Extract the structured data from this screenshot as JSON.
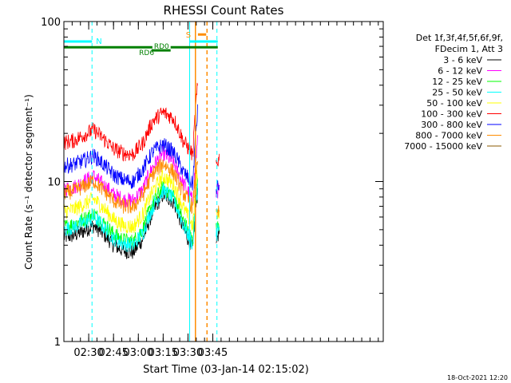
{
  "chart_data": {
    "type": "line",
    "title": "RHESSI Count Rates",
    "xlabel": "Start Time (03-Jan-14 02:15:02)",
    "ylabel": "Count Rate (s⁻¹ detector segment⁻¹)",
    "y_scale": "log",
    "ylim": [
      1,
      100
    ],
    "y_ticks": [
      {
        "value": 1,
        "label": "1"
      },
      {
        "value": 10,
        "label": "10"
      },
      {
        "value": 100,
        "label": "100"
      }
    ],
    "x_range_min": [
      0,
      193
    ],
    "x_ticks": [
      {
        "t": 15,
        "label": "02:30"
      },
      {
        "t": 30,
        "label": "02:45"
      },
      {
        "t": 45,
        "label": "03:00"
      },
      {
        "t": 60,
        "label": "03:15"
      },
      {
        "t": 75,
        "label": "03:30"
      },
      {
        "t": 90,
        "label": "03:45"
      }
    ],
    "legend_header": [
      "Det 1f,3f,4f,5f,6f,9f,",
      "FDecim 1, Att 3"
    ],
    "legend_position": "right",
    "gaps_min": [
      [
        81.5,
        91.5
      ]
    ],
    "series": [
      {
        "name": "3 - 6 keV",
        "color": "#000000",
        "x": [
          0,
          6,
          12,
          18,
          24,
          30,
          36,
          42,
          48,
          54,
          60,
          66,
          72,
          78,
          81
        ],
        "values": [
          4.5,
          4.6,
          4.9,
          5.3,
          4.7,
          4.0,
          3.7,
          3.6,
          4.4,
          6.5,
          8.3,
          7.5,
          5.1,
          3.7,
          9.0
        ],
        "x2": [
          92,
          94
        ],
        "values2": [
          4.5,
          4.8
        ]
      },
      {
        "name": "6 - 12 keV",
        "color": "#ff00ff",
        "x": [
          0,
          6,
          12,
          18,
          24,
          30,
          36,
          42,
          48,
          54,
          60,
          66,
          72,
          78,
          81
        ],
        "values": [
          9.0,
          9.2,
          10.0,
          10.8,
          9.5,
          8.3,
          7.7,
          7.6,
          9.0,
          12.5,
          15.0,
          13.2,
          9.8,
          7.5,
          18.0
        ],
        "x2": [
          92,
          94
        ],
        "values2": [
          8.5,
          9.0
        ]
      },
      {
        "name": "12 - 25 keV",
        "color": "#00ff00",
        "x": [
          0,
          6,
          12,
          18,
          24,
          30,
          36,
          42,
          48,
          54,
          60,
          66,
          72,
          78,
          81
        ],
        "values": [
          5.2,
          5.4,
          5.8,
          6.3,
          5.5,
          4.7,
          4.3,
          4.2,
          5.1,
          7.4,
          9.2,
          8.2,
          5.7,
          4.2,
          10.0
        ],
        "x2": [
          92,
          94
        ],
        "values2": [
          5.0,
          5.3
        ]
      },
      {
        "name": "25 - 50 keV",
        "color": "#00ffff",
        "x": [
          0,
          6,
          12,
          18,
          24,
          30,
          36,
          42,
          48,
          54,
          60,
          66,
          72,
          78,
          81
        ],
        "values": [
          5.0,
          5.2,
          5.5,
          6.0,
          5.2,
          4.4,
          4.1,
          4.0,
          4.8,
          7.0,
          8.8,
          7.8,
          5.4,
          4.0,
          9.5
        ],
        "x2": [
          92,
          94
        ],
        "values2": [
          4.8,
          5.1
        ]
      },
      {
        "name": "50 - 100 keV",
        "color": "#ffff00",
        "x": [
          0,
          6,
          12,
          18,
          24,
          30,
          36,
          42,
          48,
          54,
          60,
          66,
          72,
          78,
          81
        ],
        "values": [
          6.5,
          6.7,
          7.2,
          7.8,
          6.8,
          5.8,
          5.3,
          5.2,
          6.3,
          8.8,
          10.8,
          9.6,
          6.9,
          5.2,
          12.0
        ],
        "x2": [
          92,
          94
        ],
        "values2": [
          6.2,
          6.6
        ]
      },
      {
        "name": "100 - 300 keV",
        "color": "#ff0000",
        "x": [
          0,
          6,
          12,
          18,
          24,
          30,
          36,
          42,
          48,
          54,
          60,
          66,
          72,
          78,
          81
        ],
        "values": [
          17.5,
          18.0,
          19.5,
          21.0,
          18.5,
          16.0,
          15.0,
          14.8,
          17.5,
          24.0,
          27.0,
          25.0,
          18.0,
          14.5,
          40.0
        ],
        "x2": [
          92,
          94
        ],
        "values2": [
          13.0,
          14.0
        ]
      },
      {
        "name": "300 - 800 keV",
        "color": "#0000ff",
        "x": [
          0,
          6,
          12,
          18,
          24,
          30,
          36,
          42,
          48,
          54,
          60,
          66,
          72,
          78,
          81
        ],
        "values": [
          12.5,
          12.8,
          13.5,
          14.5,
          12.8,
          11.0,
          10.2,
          10.0,
          12.0,
          15.5,
          17.0,
          15.3,
          11.5,
          9.5,
          28.0
        ],
        "x2": [
          92,
          94
        ],
        "values2": [
          9.0,
          9.5
        ]
      },
      {
        "name": "800 - 7000 keV",
        "color": "#ff8c00",
        "x": [
          0,
          6,
          12,
          18,
          24,
          30,
          36,
          42,
          48,
          54,
          60,
          66,
          72,
          78,
          81
        ],
        "values": [
          8.5,
          8.7,
          9.3,
          10.1,
          8.8,
          7.6,
          7.0,
          6.9,
          8.3,
          11.2,
          13.0,
          11.5,
          8.5,
          6.8,
          15.0
        ],
        "x2": [
          92,
          94
        ],
        "values2": [
          6.0,
          6.5
        ]
      },
      {
        "name": "7000 - 15000 keV",
        "color": "#8b5a00",
        "x": [],
        "values": [],
        "x2": [],
        "values2": []
      }
    ],
    "annotations": {
      "night_bar": {
        "label": "N",
        "color": "#00ffff",
        "y_value": 75,
        "segments_min": [
          [
            0,
            17
          ],
          [
            76,
            93
          ]
        ]
      },
      "saa_bar": {
        "label": "S",
        "color": "#ff8c00",
        "y_value": 83,
        "segments_min": [
          [
            79.5,
            86
          ]
        ]
      },
      "decim_bar": {
        "color": "#008000",
        "y_value": 69,
        "segments_min": [
          [
            0,
            53.5
          ],
          [
            64.5,
            93
          ]
        ]
      },
      "rd0": {
        "label": "RD0",
        "color": "#008000",
        "t": 59,
        "y_value": 70
      },
      "rd6": {
        "label": "RD6",
        "color": "#008000",
        "t": 50,
        "y_value": 64,
        "segment_min": [
          53,
          64.5
        ],
        "seg_y_value": 66
      },
      "vlines": [
        {
          "t": 0,
          "color": "#00ffff",
          "style": "solid"
        },
        {
          "t": 17,
          "color": "#00ffff",
          "style": "dashed"
        },
        {
          "t": 76,
          "color": "#00ffff",
          "style": "solid"
        },
        {
          "t": 92.5,
          "color": "#00ffff",
          "style": "dashed"
        },
        {
          "t": 79.5,
          "color": "#ff8c00",
          "style": "solid"
        },
        {
          "t": 86.5,
          "color": "#ff8c00",
          "style": "dashed"
        }
      ]
    },
    "footer_date": "18-Oct-2021 12:20"
  }
}
